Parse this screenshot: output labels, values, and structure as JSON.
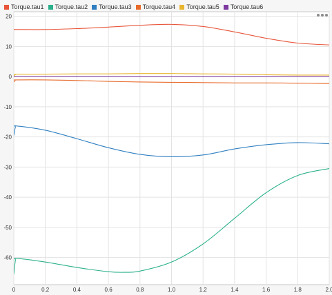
{
  "legend": [
    {
      "label": "Torque.tau1",
      "color": "#e8553a"
    },
    {
      "label": "Torque.tau2",
      "color": "#2ab08a"
    },
    {
      "label": "Torque.tau3",
      "color": "#2f7fc1"
    },
    {
      "label": "Torque.tau4",
      "color": "#e86a2a"
    },
    {
      "label": "Torque.tau5",
      "color": "#e9b530"
    },
    {
      "label": "Torque.tau6",
      "color": "#7e3aa0"
    }
  ],
  "chart_data": {
    "type": "line",
    "title": "",
    "xlabel": "",
    "ylabel": "",
    "xlim": [
      0,
      2.0
    ],
    "ylim": [
      -69,
      21.5
    ],
    "xticks": [
      0,
      0.2,
      0.4,
      0.6,
      0.8,
      1.0,
      1.2,
      1.4,
      1.6,
      1.8,
      2.0
    ],
    "xtick_labels": [
      "0",
      "0.2",
      "0.4",
      "0.6",
      "0.8",
      "1.0",
      "1.2",
      "1.4",
      "1.6",
      "1.8",
      "2.0"
    ],
    "yticks": [
      20,
      10,
      0,
      -10,
      -20,
      -30,
      -40,
      -50,
      -60
    ],
    "ytick_labels": [
      "20",
      "10",
      "0",
      "-10",
      "-20",
      "-30",
      "-40",
      "-50",
      "-60"
    ],
    "grid": true,
    "legend_position": "top-left",
    "series": [
      {
        "name": "Torque.tau1",
        "color": "#e8553a",
        "x": [
          0,
          0.2,
          0.4,
          0.6,
          0.8,
          1.0,
          1.2,
          1.4,
          1.6,
          1.8,
          2.0
        ],
        "y": [
          15.6,
          15.6,
          15.9,
          16.4,
          17.0,
          17.3,
          16.6,
          14.8,
          12.7,
          11.1,
          10.5
        ]
      },
      {
        "name": "Torque.tau2",
        "color": "#2ab08a",
        "x": [
          0,
          0.01,
          0.02,
          0.2,
          0.4,
          0.6,
          0.7,
          0.8,
          1.0,
          1.2,
          1.4,
          1.6,
          1.8,
          2.0
        ],
        "y": [
          -65.5,
          -61.0,
          -60.3,
          -61.5,
          -63.3,
          -64.7,
          -64.9,
          -64.5,
          -61.5,
          -55.5,
          -47.0,
          -38.5,
          -32.8,
          -30.5
        ]
      },
      {
        "name": "Torque.tau3",
        "color": "#2f7fc1",
        "x": [
          0,
          0.01,
          0.02,
          0.2,
          0.4,
          0.6,
          0.8,
          1.0,
          1.2,
          1.4,
          1.6,
          1.8,
          2.0
        ],
        "y": [
          -19.5,
          -16.8,
          -16.4,
          -17.8,
          -20.6,
          -23.6,
          -25.8,
          -26.6,
          -26.0,
          -24.0,
          -22.6,
          -21.9,
          -22.3
        ]
      },
      {
        "name": "Torque.tau4",
        "color": "#e86a2a",
        "x": [
          0,
          0.01,
          0.02,
          0.2,
          0.4,
          0.6,
          0.8,
          1.0,
          1.2,
          1.4,
          1.6,
          1.8,
          2.0
        ],
        "y": [
          -1.8,
          -1.2,
          -1.1,
          -1.1,
          -1.3,
          -1.6,
          -1.8,
          -1.9,
          -2.0,
          -2.1,
          -2.1,
          -2.2,
          -2.3
        ]
      },
      {
        "name": "Torque.tau5",
        "color": "#e9b530",
        "x": [
          0,
          0.01,
          0.02,
          0.2,
          0.4,
          0.6,
          0.8,
          1.0,
          1.2,
          1.4,
          1.6,
          1.8,
          2.0
        ],
        "y": [
          0.2,
          0.7,
          0.8,
          0.8,
          0.9,
          0.9,
          1.0,
          1.0,
          0.9,
          0.8,
          0.6,
          0.5,
          0.5
        ]
      },
      {
        "name": "Torque.tau6",
        "color": "#7e3aa0",
        "x": [
          0,
          0.4,
          0.8,
          1.2,
          1.6,
          2.0
        ],
        "y": [
          0.0,
          0.0,
          0.0,
          0.0,
          0.0,
          0.0
        ]
      }
    ]
  }
}
